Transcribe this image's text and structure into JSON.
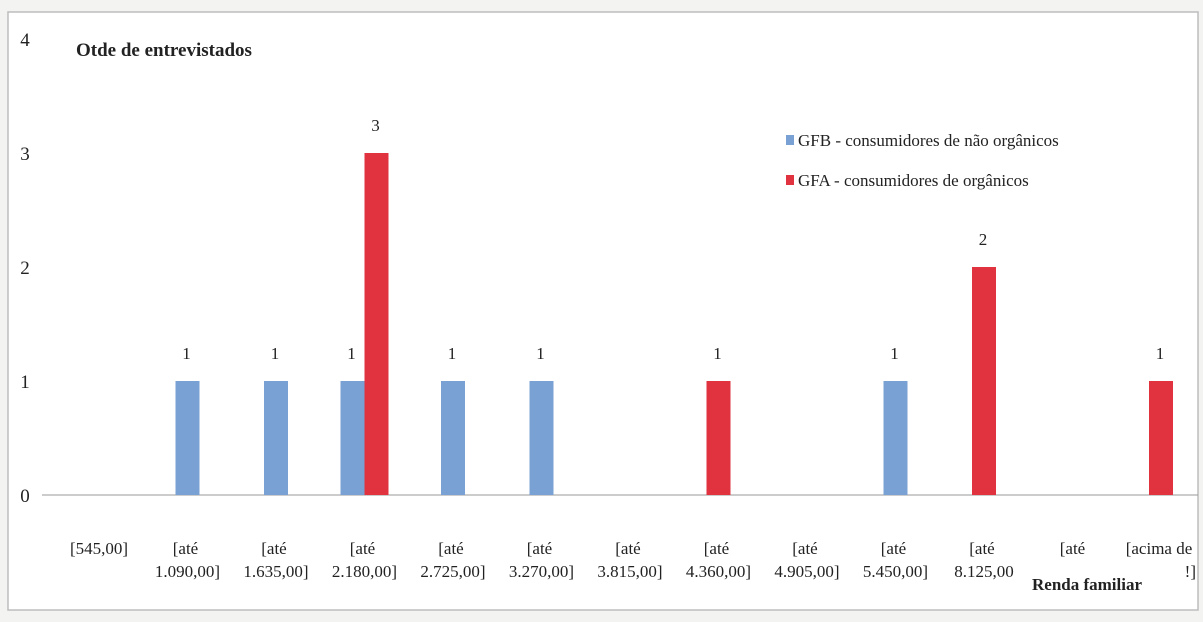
{
  "chart_data": {
    "type": "bar",
    "title": "Otde de entrevistados",
    "xlabel": "Renda familiar",
    "ylabel": "",
    "ylim": [
      0,
      4
    ],
    "yticks": [
      "0",
      "1",
      "2",
      "3",
      "4"
    ],
    "grid": false,
    "legend_position": "top-right",
    "categories": [
      "[545,00]",
      "[até 1.090,00]",
      "[até 1.635,00]",
      "[até 2.180,00]",
      "[até 2.725,00]",
      "[até 3.270,00]",
      "[até 3.815,00]",
      "[até 4.360,00]",
      "[até 4.905,00]",
      "[até 5.450,00]",
      "[até 8.125,00",
      "[até",
      "[acima de !]"
    ],
    "category_lines": [
      [
        "[545,00]"
      ],
      [
        "[até",
        "1.090,00]"
      ],
      [
        "[até",
        "1.635,00]"
      ],
      [
        "[até",
        "2.180,00]"
      ],
      [
        "[até",
        "2.725,00]"
      ],
      [
        "[até",
        "3.270,00]"
      ],
      [
        "[até",
        "3.815,00]"
      ],
      [
        "[até",
        "4.360,00]"
      ],
      [
        "[até",
        "4.905,00]"
      ],
      [
        "[até",
        "5.450,00]"
      ],
      [
        "[até",
        "8.125,00"
      ],
      [
        "[até"
      ],
      [
        "[acima de",
        "!]"
      ]
    ],
    "series": [
      {
        "name": "GFB - consumidores de não orgânicos",
        "color": "#7aa1d3",
        "values": [
          0,
          1,
          1,
          1,
          1,
          1,
          0,
          0,
          0,
          1,
          0,
          0,
          0
        ]
      },
      {
        "name": "GFA - consumidores de orgânicos",
        "color": "#e0323f",
        "values": [
          0,
          0,
          0,
          3,
          0,
          0,
          0,
          1,
          0,
          0,
          2,
          0,
          1
        ]
      }
    ]
  }
}
